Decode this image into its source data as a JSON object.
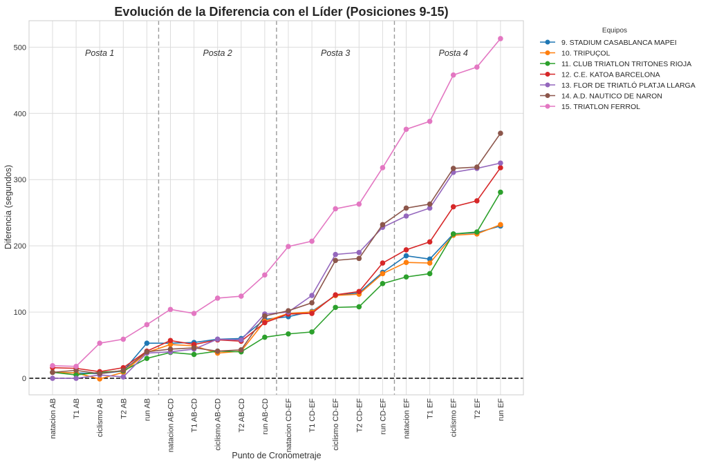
{
  "chart_data": {
    "type": "line",
    "title": "Evolución de la Diferencia con el Líder (Posiciones 9-15)",
    "xlabel": "Punto de Cronometraje",
    "ylabel": "Diferencia (segundos)",
    "ylim": [
      -25,
      540
    ],
    "yticks": [
      0,
      100,
      200,
      300,
      400,
      500
    ],
    "grid": true,
    "reference_line": {
      "value": 0,
      "style": "dashed",
      "color": "#000000"
    },
    "categories": [
      "natacion AB",
      "T1 AB",
      "ciclismo AB",
      "T2 AB",
      "run AB",
      "natacion AB-CD",
      "T1 AB-CD",
      "ciclismo AB-CD",
      "T2 AB-CD",
      "run AB-CD",
      "natacion CD-EF",
      "T1 CD-EF",
      "ciclismo CD-EF",
      "T2 CD-EF",
      "run CD-EF",
      "natacion EF",
      "T1 EF",
      "ciclismo EF",
      "T2 EF",
      "run EF"
    ],
    "sections": [
      {
        "label": "Posta 1",
        "start_index": 0,
        "end_index": 4
      },
      {
        "label": "Posta 2",
        "start_index": 5,
        "end_index": 9
      },
      {
        "label": "Posta 3",
        "start_index": 10,
        "end_index": 14
      },
      {
        "label": "Posta 4",
        "start_index": 15,
        "end_index": 19
      }
    ],
    "legend": {
      "title": "Equipos",
      "placement": "outside-top-right"
    },
    "series": [
      {
        "name": "9. STADIUM CASABLANCA MAPEI",
        "color": "#1f77b4",
        "values": [
          9,
          8,
          7,
          11,
          53,
          53,
          54,
          59,
          60,
          89,
          93,
          101,
          125,
          129,
          160,
          185,
          180,
          218,
          220,
          230
        ]
      },
      {
        "name": "10. TRIPUÇOL",
        "color": "#ff7f0e",
        "values": [
          9,
          8,
          -1,
          9,
          39,
          51,
          49,
          38,
          41,
          86,
          98,
          100,
          125,
          127,
          158,
          175,
          174,
          216,
          218,
          232
        ]
      },
      {
        "name": "11. CLUB TRIATLON TRITONES RIOJA",
        "color": "#2ca02c",
        "values": [
          9,
          5,
          9,
          11,
          30,
          39,
          36,
          41,
          40,
          62,
          67,
          70,
          107,
          108,
          143,
          153,
          158,
          218,
          221,
          281
        ]
      },
      {
        "name": "12. C.E. KATOA BARCELONA",
        "color": "#d62728",
        "values": [
          16,
          15,
          10,
          16,
          41,
          57,
          51,
          58,
          56,
          84,
          97,
          98,
          126,
          131,
          174,
          194,
          206,
          259,
          268,
          318
        ]
      },
      {
        "name": "13. FLOR DE TRIATLÓ PLATJA LLARGA",
        "color": "#9467bd",
        "values": [
          0,
          0,
          5,
          2,
          38,
          40,
          44,
          59,
          58,
          97,
          100,
          125,
          187,
          190,
          228,
          245,
          257,
          311,
          317,
          325
        ]
      },
      {
        "name": "14. A.D. NAUTICO DE NARON",
        "color": "#8c564b",
        "values": [
          9,
          12,
          7,
          12,
          40,
          44,
          46,
          41,
          43,
          94,
          102,
          114,
          178,
          181,
          232,
          257,
          263,
          317,
          319,
          370
        ]
      },
      {
        "name": "15. TRIATLON FERROL",
        "color": "#e377c2",
        "values": [
          19,
          18,
          53,
          59,
          81,
          104,
          98,
          121,
          124,
          156,
          199,
          207,
          256,
          263,
          318,
          376,
          388,
          458,
          470,
          513
        ]
      }
    ]
  }
}
